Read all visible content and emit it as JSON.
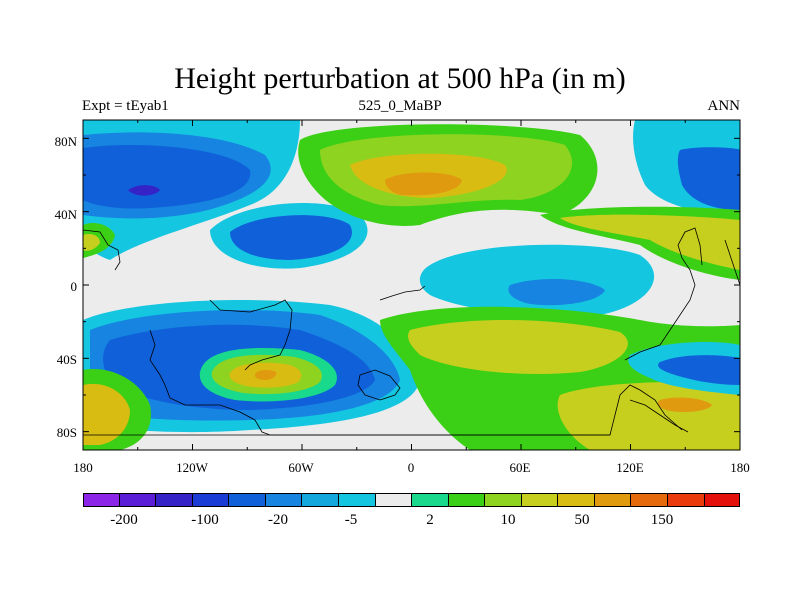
{
  "title": "Height perturbation at 500 hPa (in m)",
  "subtitle_left": "Expt = tEyab1",
  "subtitle_center": "525_0_MaBP",
  "subtitle_right": "ANN",
  "lat_labels": [
    "80N",
    "40N",
    "0",
    "40S",
    "80S"
  ],
  "lon_labels": [
    "180",
    "120W",
    "60W",
    "0",
    "60E",
    "120E",
    "180"
  ],
  "colorbar": {
    "colors": [
      "#8b26e8",
      "#5a1fd6",
      "#3623c7",
      "#1c3cd6",
      "#1060d9",
      "#1684e0",
      "#13a8dd",
      "#15c6e0",
      "#ececec",
      "#19d98c",
      "#3bd016",
      "#8fd321",
      "#c7cf1e",
      "#d8bc12",
      "#e09a10",
      "#e46a0d",
      "#ea3b0d",
      "#e4100c"
    ],
    "labels": [
      "-200",
      "-100",
      "-20",
      "-5",
      "2",
      "10",
      "50",
      "150"
    ]
  },
  "field_colors": {
    "background": "#ececec",
    "c_minus_3": "#1c3cd6",
    "c_minus_2": "#1060d9",
    "c_minus_1": "#1684e0",
    "c_minus_0": "#15c6e0",
    "c_plus_1": "#19d98c",
    "c_plus_2": "#3bd016",
    "c_plus_3": "#8fd321",
    "c_plus_4": "#c7cf1e",
    "c_plus_5": "#d8bc12",
    "c_plus_6": "#e09a10",
    "c_strong_low": "#3623c7"
  }
}
